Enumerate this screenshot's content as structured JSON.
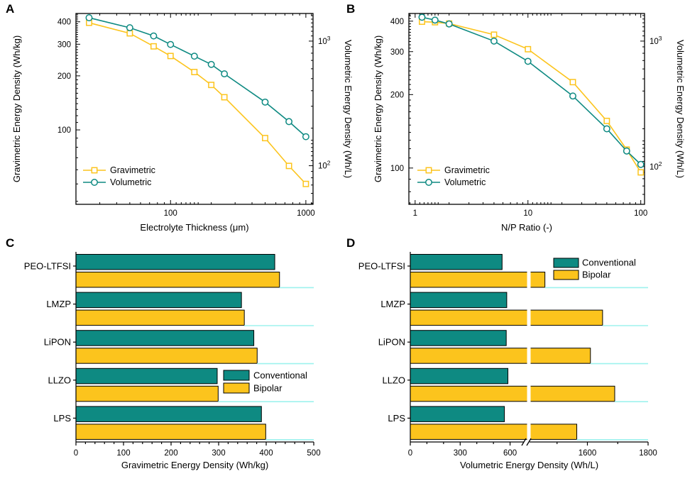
{
  "colors": {
    "teal": "#0e8a82",
    "yellow": "#fcc41d",
    "separator_cyan": "#9df2ee",
    "axis_black": "#000000",
    "marker_fill": "#ffffff"
  },
  "chart_data": [
    {
      "panel_label": "A",
      "type": "line",
      "x_scale": "log",
      "y_scale": "log",
      "xlabel": "Electrolyte Thickness (μm)",
      "ylabel_left": "Gravimetric Energy Density (Wh/kg)",
      "ylabel_right": "Volumetric Energy Density (Wh/L)",
      "x_range": [
        20,
        1130
      ],
      "x_ticks": [
        100,
        1000
      ],
      "y_left_range": [
        38.5,
        445
      ],
      "y_left_ticks": [
        100,
        200,
        300,
        400
      ],
      "y_right_range": [
        49,
        1666
      ],
      "y_right_ticks": [
        100,
        1000
      ],
      "y_right_tick_format": "pow10",
      "legend_position": "bottom-left",
      "x": [
        25,
        50,
        75,
        100,
        150,
        200,
        250,
        500,
        750,
        1000
      ],
      "series": [
        {
          "name": "Gravimetric",
          "axis": "left",
          "marker": "square",
          "color_key": "yellow",
          "values": [
            395,
            345,
            292,
            258,
            210,
            178,
            152,
            90,
            63,
            50
          ]
        },
        {
          "name": "Volumetric",
          "axis": "right",
          "marker": "circle",
          "color_key": "teal",
          "values": [
            1540,
            1280,
            1100,
            940,
            757,
            650,
            546,
            324,
            226,
            171
          ]
        }
      ]
    },
    {
      "panel_label": "B",
      "type": "line",
      "x_scale": "log",
      "y_scale": "log",
      "xlabel": "N/P Ratio (-)",
      "ylabel_left": "Gravimetric Energy Density (Wh/kg)",
      "ylabel_right": "Volumetric Energy Density (Wh/L)",
      "x_range": [
        0.88,
        108
      ],
      "x_ticks": [
        1,
        10,
        100
      ],
      "y_left_range": [
        71,
        430
      ],
      "y_left_ticks": [
        100,
        200,
        300,
        400
      ],
      "y_right_range": [
        50,
        1660
      ],
      "y_right_ticks": [
        100,
        1000
      ],
      "y_right_tick_format": "pow10",
      "legend_position": "bottom-left",
      "x": [
        1.15,
        1.5,
        2,
        5,
        10,
        25,
        50,
        75,
        100
      ],
      "series": [
        {
          "name": "Gravimetric",
          "axis": "left",
          "marker": "square",
          "color_key": "yellow",
          "values": [
            398,
            396,
            391,
            352,
            307,
            225,
            156,
            119,
            96
          ]
        },
        {
          "name": "Volumetric",
          "axis": "right",
          "marker": "circle",
          "color_key": "teal",
          "values": [
            1550,
            1470,
            1370,
            1000,
            690,
            365,
            200,
            133,
            104
          ]
        }
      ]
    },
    {
      "panel_label": "C",
      "type": "bar-h",
      "xlabel": "Gravimetric Energy Density (Wh/kg)",
      "categories": [
        "PEO-LTFSI",
        "LMZP",
        "LiPON",
        "LLZO",
        "LPS"
      ],
      "x_range": [
        0,
        500
      ],
      "x_ticks": [
        0,
        100,
        200,
        300,
        400,
        500
      ],
      "x_minor_step": 20,
      "legend_position": "middle-right",
      "series": [
        {
          "name": "Conventional",
          "color_key": "teal",
          "values": [
            418,
            348,
            374,
            297,
            390
          ]
        },
        {
          "name": "Bipolar",
          "color_key": "yellow",
          "values": [
            428,
            354,
            381,
            299,
            399
          ]
        }
      ]
    },
    {
      "panel_label": "D",
      "type": "bar-h-broken",
      "xlabel": "Volumetric Energy Density (Wh/L)",
      "categories": [
        "PEO-LTFSI",
        "LMZP",
        "LiPON",
        "LLZO",
        "LPS"
      ],
      "axis_break": {
        "left_segment_max": 700,
        "right_segment_min": 1400
      },
      "x_max": 1800,
      "x_ticks_left": [
        0,
        300,
        600
      ],
      "x_ticks_right": [
        1600,
        1800
      ],
      "x_minor_left": [
        100,
        200,
        400,
        500
      ],
      "x_minor_right": [
        1500,
        1700
      ],
      "legend_position": "top-right",
      "series": [
        {
          "name": "Conventional",
          "color_key": "teal",
          "values": [
            552,
            580,
            577,
            587,
            566
          ]
        },
        {
          "name": "Bipolar",
          "color_key": "yellow",
          "values": [
            1460,
            1650,
            1610,
            1690,
            1565
          ]
        }
      ]
    }
  ]
}
